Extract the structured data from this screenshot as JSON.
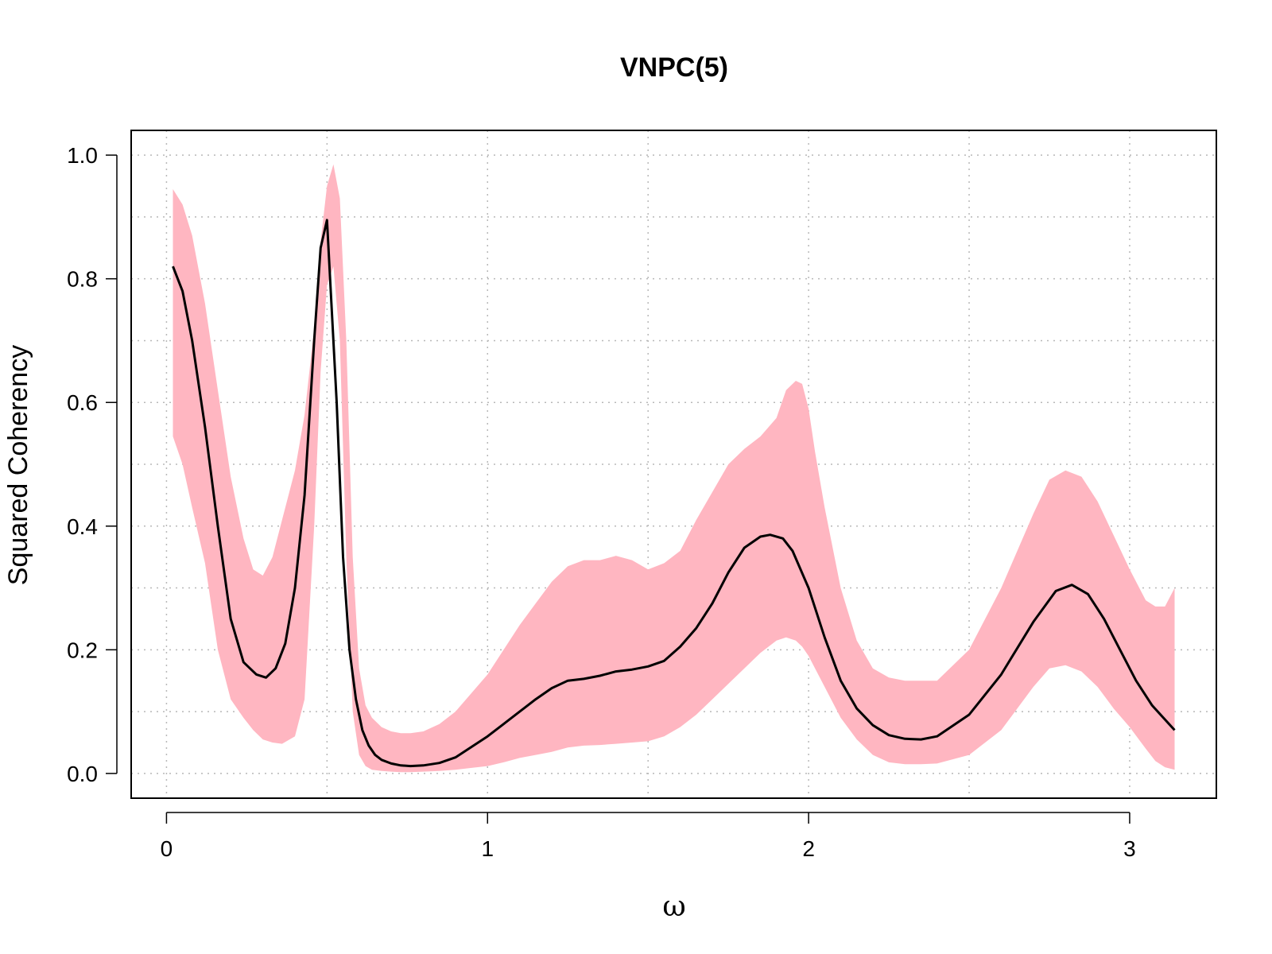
{
  "chart_data": {
    "type": "line",
    "title": "VNPC(5)",
    "xlabel": "ω",
    "ylabel": "Squared Coherency",
    "xlim": [
      -0.11,
      3.27
    ],
    "ylim": [
      -0.04,
      1.04
    ],
    "xticks": [
      0,
      1,
      2,
      3
    ],
    "xtick_labels": [
      "0",
      "1",
      "2",
      "3"
    ],
    "yticks": [
      0.0,
      0.2,
      0.4,
      0.6,
      0.8,
      1.0
    ],
    "ytick_labels": [
      "0.0",
      "0.2",
      "0.4",
      "0.6",
      "0.8",
      "1.0"
    ],
    "grid": true,
    "grid_x": [
      0,
      0.5,
      1,
      1.5,
      2,
      2.5,
      3
    ],
    "grid_y": [
      0.0,
      0.1,
      0.2,
      0.3,
      0.4,
      0.5,
      0.6,
      0.7,
      0.8,
      0.9,
      1.0
    ],
    "colors": {
      "band": "#ffb6c1",
      "line": "#000000"
    },
    "series": [
      {
        "kind": "line",
        "x": [
          0.02,
          0.05,
          0.08,
          0.12,
          0.16,
          0.2,
          0.24,
          0.28,
          0.31,
          0.34,
          0.37,
          0.4,
          0.43,
          0.46,
          0.48,
          0.5,
          0.53,
          0.55,
          0.57,
          0.59,
          0.61,
          0.63,
          0.65,
          0.67,
          0.7,
          0.73,
          0.76,
          0.8,
          0.85,
          0.9,
          1.0,
          1.05,
          1.1,
          1.15,
          1.2,
          1.25,
          1.3,
          1.35,
          1.4,
          1.45,
          1.5,
          1.55,
          1.6,
          1.65,
          1.7,
          1.75,
          1.8,
          1.85,
          1.88,
          1.92,
          1.95,
          2.0,
          2.05,
          2.1,
          2.15,
          2.2,
          2.25,
          2.3,
          2.35,
          2.4,
          2.5,
          2.6,
          2.7,
          2.77,
          2.82,
          2.87,
          2.92,
          2.97,
          3.02,
          3.07,
          3.14
        ],
        "y": [
          0.82,
          0.78,
          0.7,
          0.56,
          0.4,
          0.25,
          0.18,
          0.16,
          0.155,
          0.17,
          0.21,
          0.3,
          0.45,
          0.7,
          0.85,
          0.895,
          0.6,
          0.35,
          0.2,
          0.12,
          0.07,
          0.045,
          0.03,
          0.022,
          0.016,
          0.013,
          0.012,
          0.013,
          0.017,
          0.026,
          0.06,
          0.08,
          0.1,
          0.12,
          0.138,
          0.15,
          0.153,
          0.158,
          0.165,
          0.168,
          0.173,
          0.182,
          0.205,
          0.235,
          0.275,
          0.325,
          0.365,
          0.383,
          0.386,
          0.38,
          0.36,
          0.3,
          0.22,
          0.15,
          0.105,
          0.078,
          0.062,
          0.056,
          0.055,
          0.06,
          0.095,
          0.16,
          0.245,
          0.295,
          0.305,
          0.29,
          0.25,
          0.2,
          0.15,
          0.11,
          0.07
        ]
      },
      {
        "kind": "band",
        "x": [
          0.02,
          0.05,
          0.08,
          0.12,
          0.16,
          0.2,
          0.24,
          0.27,
          0.3,
          0.33,
          0.36,
          0.4,
          0.43,
          0.46,
          0.48,
          0.5,
          0.52,
          0.54,
          0.56,
          0.58,
          0.6,
          0.62,
          0.64,
          0.67,
          0.7,
          0.73,
          0.76,
          0.8,
          0.85,
          0.9,
          0.95,
          1.0,
          1.05,
          1.1,
          1.15,
          1.2,
          1.25,
          1.3,
          1.35,
          1.4,
          1.45,
          1.5,
          1.55,
          1.6,
          1.65,
          1.7,
          1.75,
          1.8,
          1.85,
          1.9,
          1.93,
          1.96,
          1.98,
          2.0,
          2.02,
          2.05,
          2.1,
          2.15,
          2.2,
          2.25,
          2.3,
          2.35,
          2.4,
          2.5,
          2.6,
          2.7,
          2.75,
          2.8,
          2.85,
          2.9,
          2.95,
          3.0,
          3.05,
          3.08,
          3.11,
          3.14
        ],
        "upper": [
          0.945,
          0.92,
          0.87,
          0.76,
          0.62,
          0.48,
          0.38,
          0.33,
          0.32,
          0.35,
          0.41,
          0.49,
          0.58,
          0.72,
          0.86,
          0.95,
          0.985,
          0.93,
          0.7,
          0.35,
          0.17,
          0.11,
          0.09,
          0.075,
          0.068,
          0.065,
          0.065,
          0.068,
          0.08,
          0.1,
          0.13,
          0.16,
          0.2,
          0.24,
          0.275,
          0.31,
          0.335,
          0.345,
          0.345,
          0.352,
          0.345,
          0.33,
          0.34,
          0.36,
          0.41,
          0.455,
          0.5,
          0.525,
          0.545,
          0.575,
          0.62,
          0.635,
          0.63,
          0.59,
          0.52,
          0.43,
          0.3,
          0.215,
          0.17,
          0.155,
          0.15,
          0.15,
          0.15,
          0.2,
          0.3,
          0.42,
          0.475,
          0.49,
          0.48,
          0.44,
          0.385,
          0.33,
          0.28,
          0.27,
          0.27,
          0.3
        ],
        "lower": [
          0.545,
          0.5,
          0.43,
          0.34,
          0.2,
          0.12,
          0.09,
          0.07,
          0.055,
          0.05,
          0.048,
          0.06,
          0.12,
          0.4,
          0.65,
          0.79,
          0.82,
          0.7,
          0.35,
          0.1,
          0.03,
          0.012,
          0.006,
          0.004,
          0.003,
          0.002,
          0.002,
          0.003,
          0.004,
          0.006,
          0.009,
          0.012,
          0.018,
          0.025,
          0.03,
          0.035,
          0.042,
          0.045,
          0.046,
          0.048,
          0.05,
          0.052,
          0.06,
          0.075,
          0.095,
          0.12,
          0.145,
          0.17,
          0.195,
          0.215,
          0.22,
          0.215,
          0.205,
          0.19,
          0.17,
          0.14,
          0.09,
          0.055,
          0.03,
          0.018,
          0.015,
          0.015,
          0.016,
          0.03,
          0.07,
          0.14,
          0.17,
          0.175,
          0.165,
          0.14,
          0.105,
          0.075,
          0.04,
          0.02,
          0.01,
          0.006
        ]
      }
    ]
  }
}
